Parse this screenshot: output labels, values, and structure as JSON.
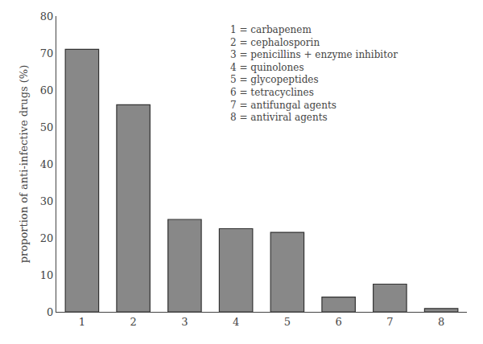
{
  "chart_data": {
    "type": "bar",
    "categories": [
      "1",
      "2",
      "3",
      "4",
      "5",
      "6",
      "7",
      "8"
    ],
    "values": [
      71.0,
      56.0,
      25.0,
      22.5,
      21.5,
      4.0,
      7.5,
      0.9
    ],
    "color": "#888888",
    "ylabel": "proportion of anti-infective drugs (%)",
    "ylim": [
      0,
      80
    ],
    "yticks": [
      0,
      10,
      20,
      30,
      40,
      50,
      60,
      70,
      80
    ],
    "annotations": [
      "1 = carbapenem",
      "2 = cephalosporin",
      "3 = penicillins + enzyme inhibitor",
      "4 = quinolones",
      "5 = glycopeptides",
      "6 = tetracyclines",
      "7 = antifungal agents",
      "8 = antiviral agents"
    ],
    "grid": false
  }
}
